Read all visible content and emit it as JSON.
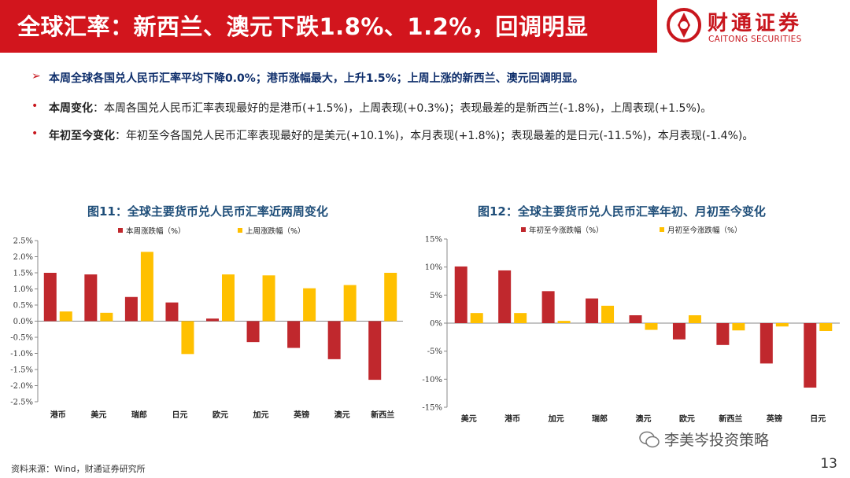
{
  "header": {
    "title": "全球汇率：新西兰、澳元下跌1.8%、1.2%，回调明显",
    "logo_cn": "财通证券",
    "logo_en": "CAITONG SECURITIES"
  },
  "bullets": {
    "b1_marker": "➢",
    "b1_text": "本周全球各国兑人民币汇率平均下降0.0%；港币涨幅最大，上升1.5%；上周上涨的新西兰、澳元回调明显。",
    "dot": "•",
    "b2_label": "本周变化",
    "b2_text": "：本周各国兑人民币汇率表现最好的是港币(+1.5%)，上周表现(+0.3%)；表现最差的是新西兰(-1.8%)，上周表现(+1.5%)。",
    "b3_label": "年初至今变化",
    "b3_text": "：年初至今各国兑人民币汇率表现最好的是美元(+10.1%)，本月表现(+1.8%)；表现最差的是日元(-11.5%)，本月表现(-1.4%)。"
  },
  "colors": {
    "red": "#c0282d",
    "yellow": "#ffc000",
    "brand": "#d2151d"
  },
  "chart_data": [
    {
      "type": "bar",
      "title": "图11：全球主要货币兑人民币汇率近两周变化",
      "categories": [
        "港币",
        "美元",
        "瑞郎",
        "日元",
        "欧元",
        "加元",
        "英镑",
        "澳元",
        "新西兰"
      ],
      "series": [
        {
          "name": "本周涨跌幅（%）",
          "values": [
            1.5,
            1.45,
            0.75,
            0.58,
            0.08,
            -0.65,
            -0.83,
            -1.18,
            -1.82
          ]
        },
        {
          "name": "上周涨跌幅（%）",
          "values": [
            0.3,
            0.26,
            2.15,
            -1.02,
            1.45,
            1.42,
            1.02,
            1.12,
            1.5
          ]
        }
      ],
      "ylim": [
        -2.5,
        2.5
      ],
      "yticks": [
        "2.5%",
        "2.0%",
        "1.5%",
        "1.0%",
        "0.5%",
        "0.0%",
        "-0.5%",
        "-1.0%",
        "-1.5%",
        "-2.0%",
        "-2.5%"
      ],
      "xlabel": "",
      "ylabel": ""
    },
    {
      "type": "bar",
      "title": "图12：全球主要货币兑人民币汇率年初、月初至今变化",
      "categories": [
        "美元",
        "港币",
        "加元",
        "瑞郎",
        "澳元",
        "欧元",
        "新西兰",
        "英镑",
        "日元"
      ],
      "series": [
        {
          "name": "年初至今涨跌幅（%）",
          "values": [
            10.1,
            9.4,
            5.7,
            4.4,
            1.4,
            -2.9,
            -3.9,
            -7.2,
            -11.5
          ]
        },
        {
          "name": "月初至今涨跌幅（%）",
          "values": [
            1.8,
            1.8,
            0.4,
            3.1,
            -1.2,
            1.4,
            -1.3,
            -0.6,
            -1.4
          ]
        }
      ],
      "ylim": [
        -15,
        15
      ],
      "yticks": [
        "15%",
        "10%",
        "5%",
        "0%",
        "-5%",
        "-10%",
        "-15%"
      ],
      "xlabel": "",
      "ylabel": ""
    }
  ],
  "footer": {
    "source": "资料来源：Wind，财通证券研究所",
    "page": "13",
    "watermark": "李美岑投资策略"
  }
}
